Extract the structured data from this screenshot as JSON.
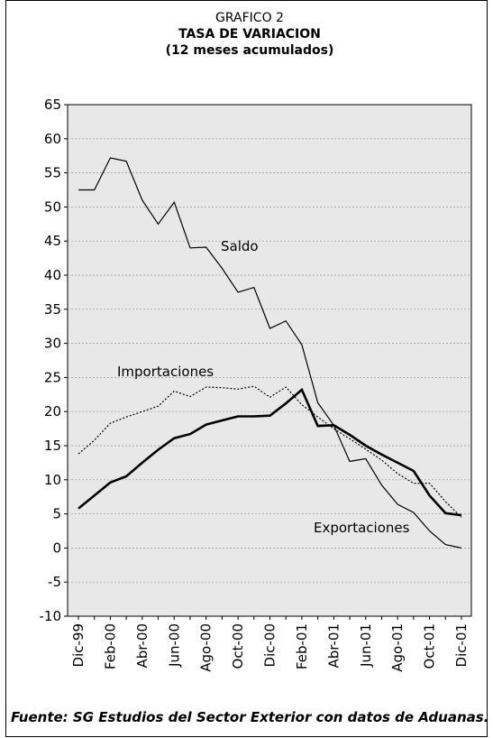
{
  "chart_data": {
    "type": "line",
    "label": "GRAFICO 2",
    "title": "TASA DE VARIACION",
    "subtitle": "(12 meses acumulados)",
    "source": "Fuente: SG Estudios del Sector Exterior con datos de Aduanas.",
    "categories": [
      "Dic-99",
      null,
      "Feb-00",
      null,
      "Abr-00",
      null,
      "Jun-00",
      null,
      "Ago-00",
      null,
      "Oct-00",
      null,
      "Dic-00",
      null,
      "Feb-01",
      null,
      "Abr-01",
      null,
      "Jun-01",
      null,
      "Ago-01",
      null,
      "Oct-01",
      null,
      "Dic-01"
    ],
    "series": [
      {
        "name": "Saldo",
        "color": "#000000",
        "line_style": "solid",
        "values": [
          52.5,
          52.5,
          57.2,
          56.7,
          51,
          47.5,
          50.7,
          44,
          44.1,
          41,
          37.5,
          38.2,
          32.2,
          33.3,
          29.8,
          21.3,
          18,
          12.7,
          13.1,
          9.2,
          6.4,
          5.2,
          2.5,
          0.5,
          0
        ]
      },
      {
        "name": "Importaciones",
        "color": "#000000",
        "line_style": "dotted",
        "values": [
          13.8,
          15.8,
          18.3,
          19.2,
          20,
          20.8,
          23,
          22.2,
          23.6,
          23.5,
          23.3,
          23.7,
          22.1,
          23.6,
          21,
          19.2,
          17.5,
          16,
          14.5,
          12.9,
          10.9,
          9.5,
          9.5,
          6.8,
          4.5
        ]
      },
      {
        "name": "Exportaciones",
        "color": "#000000",
        "line_style": "bold",
        "values": [
          5.8,
          7.7,
          9.6,
          10.5,
          12.5,
          14.4,
          16.1,
          16.7,
          18.1,
          18.7,
          19.3,
          19.3,
          19.4,
          21.2,
          23.2,
          17.9,
          18,
          16.6,
          15,
          13.7,
          12.5,
          11.3,
          7.7,
          5.1,
          4.8
        ]
      }
    ],
    "ylim": [
      -10,
      65
    ],
    "yticks": [
      -10,
      -5,
      0,
      5,
      10,
      15,
      20,
      25,
      30,
      35,
      40,
      45,
      50,
      55,
      60,
      65
    ],
    "grid": true
  }
}
